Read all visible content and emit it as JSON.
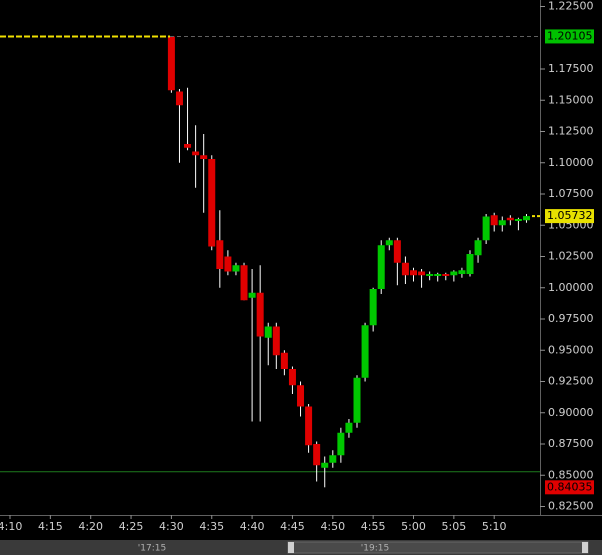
{
  "chart_data": {
    "type": "candlestick",
    "categories": [
      "4:10",
      null,
      null,
      null,
      null,
      "4:15",
      null,
      null,
      null,
      null,
      "4:20",
      null,
      null,
      null,
      null,
      "4:25",
      null,
      null,
      null,
      null,
      "4:30",
      null,
      null,
      null,
      null,
      "4:35",
      null,
      null,
      null,
      null,
      "4:40",
      null,
      null,
      null,
      null,
      "4:45",
      null,
      null,
      null,
      null,
      "4:50",
      null,
      null,
      null,
      null,
      "4:55",
      null,
      null,
      null,
      null,
      "5:00",
      null,
      null,
      null,
      null,
      "5:05",
      null,
      null,
      null,
      null,
      "5:10",
      null,
      null,
      null,
      null
    ],
    "open": [
      null,
      null,
      null,
      null,
      null,
      null,
      null,
      null,
      null,
      null,
      null,
      null,
      null,
      null,
      null,
      null,
      null,
      null,
      null,
      null,
      1.201,
      1.157,
      1.115,
      1.109,
      1.106,
      1.103,
      1.038,
      1.025,
      1.013,
      1.018,
      0.992,
      0.996,
      0.96,
      0.969,
      0.948,
      0.935,
      0.922,
      0.905,
      0.875,
      0.856,
      0.86,
      0.866,
      0.884,
      0.892,
      0.928,
      0.97,
      0.999,
      1.034,
      1.038,
      1.02,
      1.014,
      1.013,
      1.01,
      1.01,
      1.011,
      1.01,
      1.011,
      1.011,
      1.026,
      1.038,
      1.058,
      1.05,
      1.056,
      1.054,
      1.054
    ],
    "high": [
      null,
      null,
      null,
      null,
      null,
      null,
      null,
      null,
      null,
      null,
      null,
      null,
      null,
      null,
      null,
      null,
      null,
      null,
      null,
      null,
      1.201,
      1.159,
      1.16,
      1.13,
      1.123,
      1.106,
      1.062,
      1.03,
      1.02,
      1.02,
      1.015,
      1.018,
      0.972,
      0.972,
      0.95,
      0.937,
      0.925,
      0.907,
      0.877,
      0.865,
      0.87,
      0.888,
      0.895,
      0.93,
      0.972,
      1.0,
      1.038,
      1.04,
      1.04,
      1.025,
      1.016,
      1.015,
      1.013,
      1.012,
      1.012,
      1.014,
      1.016,
      1.03,
      1.04,
      1.059,
      1.06,
      1.057,
      1.058,
      1.056,
      1.059
    ],
    "low": [
      null,
      null,
      null,
      null,
      null,
      null,
      null,
      null,
      null,
      null,
      null,
      null,
      null,
      null,
      null,
      null,
      null,
      null,
      null,
      null,
      1.156,
      1.1,
      1.11,
      1.08,
      1.06,
      1.03,
      1.0,
      1.01,
      1.01,
      0.99,
      0.893,
      0.893,
      0.938,
      0.935,
      0.93,
      0.915,
      0.897,
      0.868,
      0.845,
      0.84035,
      0.856,
      0.86,
      0.88,
      0.888,
      0.925,
      0.965,
      0.995,
      1.03,
      1.002,
      1.003,
      1.005,
      1.0,
      1.006,
      1.005,
      1.006,
      1.005,
      1.008,
      1.009,
      1.02,
      1.035,
      1.045,
      1.045,
      1.05,
      1.046,
      1.052
    ],
    "close": [
      null,
      null,
      null,
      null,
      null,
      null,
      null,
      null,
      null,
      null,
      null,
      null,
      null,
      null,
      null,
      null,
      null,
      null,
      null,
      null,
      1.158,
      1.146,
      1.112,
      1.106,
      1.103,
      1.033,
      1.015,
      1.013,
      1.018,
      0.99,
      0.996,
      0.961,
      0.969,
      0.946,
      0.935,
      0.922,
      0.905,
      0.874,
      0.858,
      0.86,
      0.866,
      0.884,
      0.892,
      0.928,
      0.97,
      0.999,
      1.034,
      1.038,
      1.02,
      1.01,
      1.01,
      1.01,
      1.011,
      1.011,
      1.01,
      1.013,
      1.014,
      1.027,
      1.038,
      1.057,
      1.05,
      1.054,
      1.054,
      1.055,
      1.05732
    ],
    "up_color": "#00c800",
    "down_color": "#e00000",
    "ylim": [
      0.8182,
      1.2302
    ],
    "yticks": [
      {
        "value": 1.225,
        "label": "1.22500"
      },
      {
        "value": 1.175,
        "label": "1.17500"
      },
      {
        "value": 1.15,
        "label": "1.15000"
      },
      {
        "value": 1.125,
        "label": "1.12500"
      },
      {
        "value": 1.1,
        "label": "1.10000"
      },
      {
        "value": 1.075,
        "label": "1.07500"
      },
      {
        "value": 1.05,
        "label": "1.05000"
      },
      {
        "value": 1.025,
        "label": "1.02500"
      },
      {
        "value": 1.0,
        "label": "1.00000"
      },
      {
        "value": 0.975,
        "label": "0.97500"
      },
      {
        "value": 0.95,
        "label": "0.95000"
      },
      {
        "value": 0.925,
        "label": "0.92500"
      },
      {
        "value": 0.9,
        "label": "0.90000"
      },
      {
        "value": 0.875,
        "label": "0.87500"
      },
      {
        "value": 0.85,
        "label": "0.85000"
      },
      {
        "value": 0.825,
        "label": "0.82500"
      }
    ],
    "price_labels": [
      {
        "value": 1.20105,
        "color": "#00c000",
        "line_color": "#f0e000"
      },
      {
        "value": 1.05732,
        "color": "#e8e000",
        "line_color": "#f0e000"
      },
      {
        "value": 0.84035,
        "color": "#e00000",
        "line_color": null
      }
    ],
    "level_line": {
      "value": 0.8528,
      "color": "#1e7a1e"
    },
    "scrollbar_labels": [
      "'17:15",
      "'19:15"
    ]
  }
}
